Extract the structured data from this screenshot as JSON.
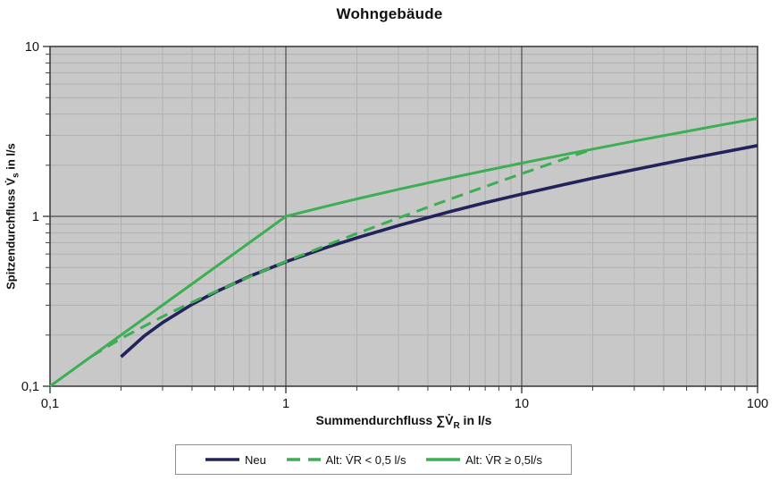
{
  "title": "Wohngebäude",
  "y_axis_label": {
    "prefix": "Spitzendurchfluss V̇",
    "sub": "s",
    "suffix": " in l/s"
  },
  "x_axis_label": {
    "prefix": "Summendurchfluss ∑V̇",
    "sub": "R",
    "suffix": " in l/s"
  },
  "legend": [
    {
      "label": "Neu",
      "color": "#23235c",
      "dash": "solid"
    },
    {
      "label": "Alt: V̇R < 0,5 l/s",
      "color": "#3cae53",
      "dash": "dashed"
    },
    {
      "label": "Alt: V̇R ≥ 0,5l/s",
      "color": "#3cae53",
      "dash": "solid"
    }
  ],
  "colors": {
    "plot_background": "#c8c8c8",
    "grid_minor": "#b0b0b0",
    "grid_major": "#5f5f5f",
    "plot_border": "#3f3f3f",
    "tick": "#3f3f3f",
    "navy": "#23235c",
    "green": "#3cae53"
  },
  "chart_data": {
    "type": "line",
    "title": "Wohngebäude",
    "xlabel": "Summendurchfluss ∑V̇R in l/s",
    "ylabel": "Spitzendurchfluss V̇s in l/s",
    "x_scale": "log",
    "y_scale": "log",
    "xlim": [
      0.1,
      100
    ],
    "ylim": [
      0.1,
      10
    ],
    "grid": "major+minor",
    "legend_position": "bottom",
    "x_ticks": [
      {
        "value": 0.1,
        "label": "0,1"
      },
      {
        "value": 1,
        "label": "1"
      },
      {
        "value": 10,
        "label": "10"
      },
      {
        "value": 100,
        "label": "100"
      }
    ],
    "y_ticks": [
      {
        "value": 0.1,
        "label": "0,1"
      },
      {
        "value": 1,
        "label": "1"
      },
      {
        "value": 10,
        "label": "10"
      }
    ],
    "major_gridlines_x": [
      1,
      10
    ],
    "major_gridlines_y": [
      1
    ],
    "series": [
      {
        "name": "Neu",
        "color": "#23235c",
        "style": "solid",
        "width": 3.6,
        "points": [
          [
            0.2,
            0.149
          ],
          [
            0.25,
            0.197
          ],
          [
            0.3,
            0.237
          ],
          [
            0.4,
            0.303
          ],
          [
            0.5,
            0.357
          ],
          [
            0.7,
            0.443
          ],
          [
            1,
            0.54
          ],
          [
            1.5,
            0.659
          ],
          [
            2,
            0.748
          ],
          [
            3,
            0.883
          ],
          [
            5,
            1.069
          ],
          [
            7,
            1.202
          ],
          [
            10,
            1.352
          ],
          [
            15,
            1.536
          ],
          [
            20,
            1.675
          ],
          [
            30,
            1.884
          ],
          [
            50,
            2.172
          ],
          [
            70,
            2.377
          ],
          [
            100,
            2.61
          ]
        ]
      },
      {
        "name": "Alt: V̇R < 0,5 l/s",
        "color": "#3cae53",
        "style": "dashed",
        "width": 3,
        "points": [
          [
            0.15,
            0.15
          ],
          [
            0.2,
            0.191
          ],
          [
            0.3,
            0.257
          ],
          [
            0.4,
            0.312
          ],
          [
            0.5,
            0.359
          ],
          [
            0.7,
            0.441
          ],
          [
            1,
            0.542
          ],
          [
            1.5,
            0.679
          ],
          [
            2,
            0.792
          ],
          [
            3,
            0.978
          ],
          [
            5,
            1.267
          ],
          [
            7,
            1.498
          ],
          [
            10,
            1.782
          ],
          [
            15,
            2.167
          ],
          [
            20,
            2.485
          ]
        ]
      },
      {
        "name": "Alt: V̇R ≥ 0,5l/s",
        "color": "#3cae53",
        "style": "solid",
        "width": 3,
        "points": [
          [
            0.1,
            0.1
          ],
          [
            1,
            1
          ],
          [
            1.5,
            1.151
          ],
          [
            2,
            1.266
          ],
          [
            3,
            1.442
          ],
          [
            5,
            1.684
          ],
          [
            7,
            1.858
          ],
          [
            10,
            2.057
          ],
          [
            15,
            2.302
          ],
          [
            20,
            2.489
          ],
          [
            30,
            2.773
          ],
          [
            50,
            3.164
          ],
          [
            70,
            3.449
          ],
          [
            100,
            3.771
          ]
        ]
      }
    ]
  }
}
